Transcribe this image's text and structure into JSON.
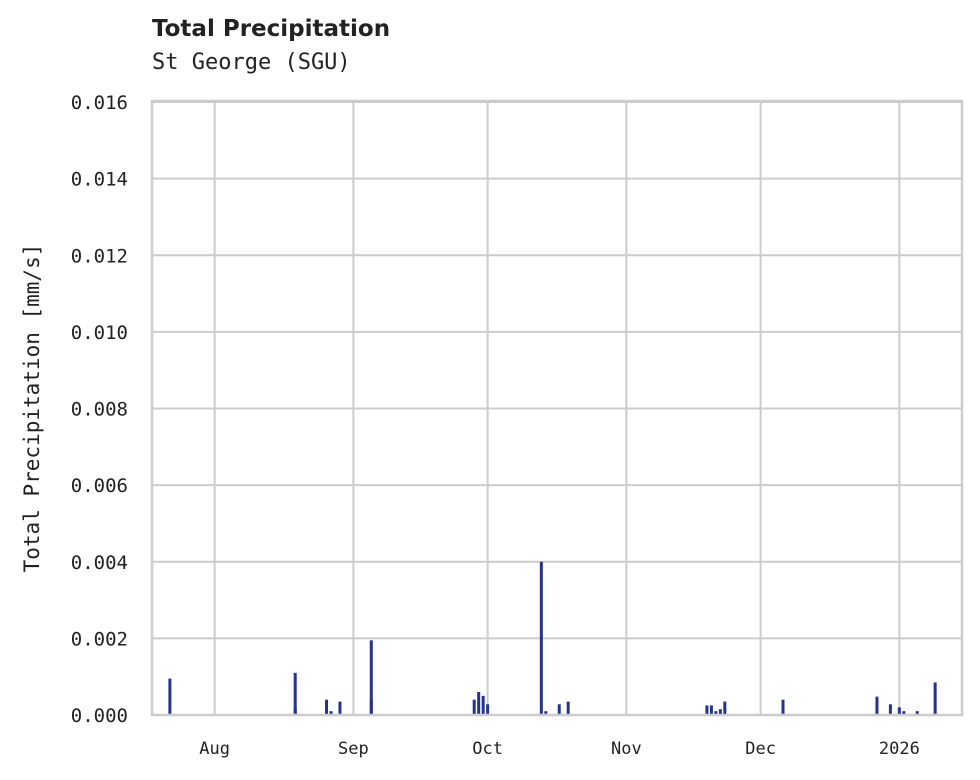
{
  "header": {
    "title": "Total Precipitation",
    "subtitle": "St George (SGU)"
  },
  "chart_data": {
    "type": "bar",
    "title": "Total Precipitation",
    "subtitle": "St George (SGU)",
    "xlabel": "",
    "ylabel": "Total Precipitation [mm/s]",
    "ylim": [
      0,
      0.016
    ],
    "yticks": [
      "0.000",
      "0.002",
      "0.004",
      "0.006",
      "0.008",
      "0.010",
      "0.012",
      "0.014",
      "0.016"
    ],
    "xticks": [
      "Aug",
      "Sep",
      "Oct",
      "Nov",
      "Dec",
      "2026"
    ],
    "xlim": [
      "2025-07-18",
      "2026-01-15"
    ],
    "grid": true,
    "legend": null,
    "color": "#25338f",
    "x": [
      "2025-07-22",
      "2025-08-19",
      "2025-08-19",
      "2025-08-26",
      "2025-08-27",
      "2025-08-29",
      "2025-09-05",
      "2025-09-05",
      "2025-09-28",
      "2025-09-29",
      "2025-09-30",
      "2025-10-01",
      "2025-10-13",
      "2025-10-14",
      "2025-10-17",
      "2025-10-19",
      "2025-11-19",
      "2025-11-20",
      "2025-11-21",
      "2025-11-22",
      "2025-11-23",
      "2025-12-06",
      "2025-12-27",
      "2025-12-30",
      "2026-01-01",
      "2026-01-02",
      "2026-01-05",
      "2026-01-09"
    ],
    "values": [
      0.00095,
      0.0011,
      0.0002,
      0.0004,
      0.0001,
      0.00035,
      0.00195,
      0.0004,
      0.0004,
      0.0006,
      0.0005,
      0.00028,
      0.004,
      0.0001,
      0.00028,
      0.00035,
      0.00025,
      0.00025,
      0.0001,
      0.00015,
      0.00035,
      0.0004,
      0.00048,
      0.00028,
      0.0002,
      0.0001,
      0.0001,
      0.00085
    ]
  }
}
